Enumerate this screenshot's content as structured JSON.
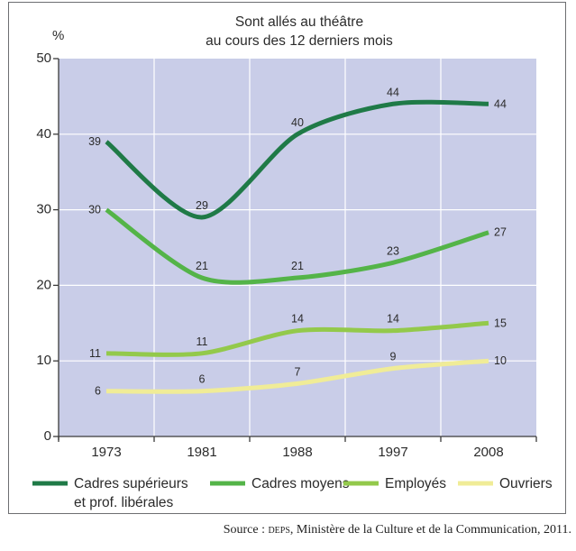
{
  "chart_data": {
    "type": "line",
    "title_lines": [
      "Sont allés au théâtre",
      "au cours des 12 derniers mois"
    ],
    "ylabel": "%",
    "xlabel": "",
    "ylim": [
      0,
      50
    ],
    "y_ticks": [
      "0",
      "10",
      "20",
      "30",
      "40",
      "50"
    ],
    "categories": [
      "1973",
      "1981",
      "1988",
      "1997",
      "2008"
    ],
    "series": [
      {
        "name": "Cadres supérieurs et prof. libérales",
        "legend_lines": [
          "Cadres supérieurs",
          "et prof. libérales"
        ],
        "color": "#1f7a47",
        "values": [
          39,
          29,
          40,
          44,
          44
        ]
      },
      {
        "name": "Cadres moyens",
        "legend_lines": [
          "Cadres moyens"
        ],
        "color": "#54b448",
        "values": [
          30,
          21,
          21,
          23,
          27
        ]
      },
      {
        "name": "Employés",
        "legend_lines": [
          "Employés"
        ],
        "color": "#93c94b",
        "values": [
          11,
          11,
          14,
          14,
          15
        ]
      },
      {
        "name": "Ouvriers",
        "legend_lines": [
          "Ouvriers"
        ],
        "color": "#f0ec97",
        "values": [
          6,
          6,
          7,
          9,
          10
        ]
      }
    ],
    "plot_background": "#c9cde8",
    "grid_color": "#ffffff",
    "grid": true
  },
  "source": {
    "prefix": "Source : ",
    "org": "DEPS",
    "rest": ", Ministère de la Culture et de la Communication, 2011."
  }
}
